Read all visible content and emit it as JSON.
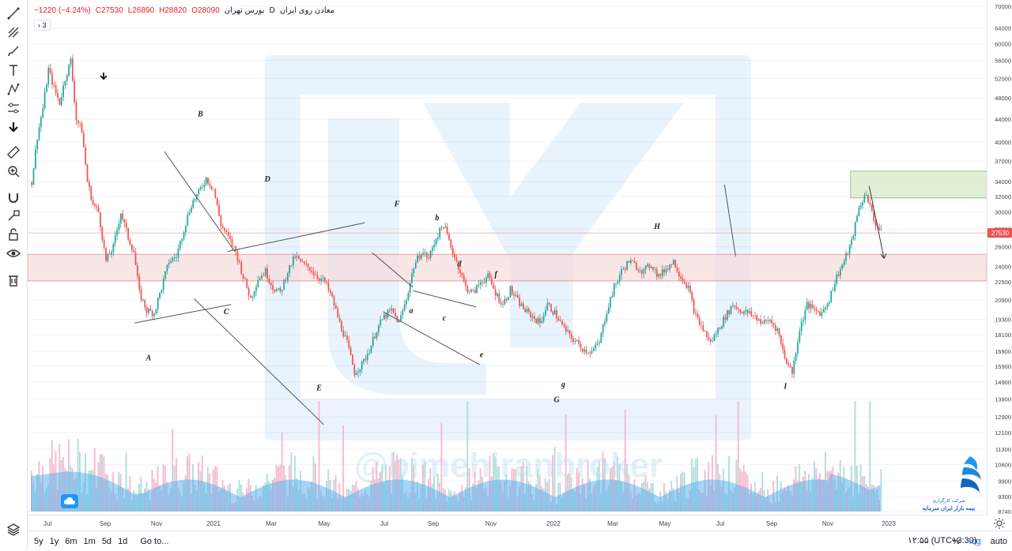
{
  "header": {
    "symbol": "معادن روی ایران",
    "interval": "D",
    "exchange": "بورس تهران",
    "open_label": "O",
    "open": "28090",
    "high_label": "H",
    "high": "28820",
    "low_label": "L",
    "low": "26890",
    "close_label": "C",
    "close": "27530",
    "change": "−1220 (−4.24%)",
    "collapse_count": "3"
  },
  "watermark": {
    "handle": "@bimehiranbroker"
  },
  "broker": {
    "line1": "شرکت کارگزاری",
    "line2": "بیمه بازار ایران سرمایه"
  },
  "toolbar": {
    "icons": [
      "trendline-icon",
      "pitchfork-icon",
      "brush-icon",
      "text-icon",
      "pattern-icon",
      "measure-settings-icon",
      "arrow-down-icon",
      "ruler-icon",
      "zoom-in-icon",
      "magnet-icon",
      "lock-drawing-icon",
      "unlock-icon",
      "eye-icon",
      "trash-icon"
    ],
    "bottom_icon": "layers-icon"
  },
  "bottom_bar": {
    "ranges": [
      "5y",
      "1y",
      "6m",
      "1m",
      "5d",
      "1d"
    ],
    "goto": "Go to...",
    "clock": "۱۲:۵۵ (UTC+3:30)",
    "percent": "%",
    "log": "log",
    "auto": "auto"
  },
  "colors": {
    "up": "#26a69a",
    "down": "#ef5350",
    "volume_area": "#5fb3ef",
    "zone": "#f8d7da",
    "box": "#d6e9c6",
    "price_tag": "#ef5350"
  },
  "chart_data": {
    "type": "candlestick",
    "title": "",
    "y_scale": "log",
    "ylim": [
      8740,
      70000
    ],
    "y_ticks": [
      70000,
      64000,
      60000,
      56000,
      52000,
      48000,
      44000,
      40000,
      37000,
      34000,
      32000,
      30000,
      28000,
      26000,
      24000,
      22500,
      20900,
      19300,
      18100,
      16900,
      15900,
      14900,
      13900,
      12900,
      12100,
      11300,
      10600,
      9900,
      9300,
      8740
    ],
    "x_ticks": [
      "Jul",
      "Sep",
      "Nov",
      "2021",
      "Mar",
      "May",
      "Jul",
      "Sep",
      "Nov",
      "2022",
      "Mar",
      "May",
      "Jul",
      "Sep",
      "Nov",
      "2023"
    ],
    "last_price": 27530,
    "price_path": [
      [
        0,
        34000
      ],
      [
        3,
        41000
      ],
      [
        6,
        46000
      ],
      [
        9,
        54000
      ],
      [
        12,
        50000
      ],
      [
        15,
        47000
      ],
      [
        18,
        52000
      ],
      [
        21,
        56000
      ],
      [
        24,
        44000
      ],
      [
        27,
        42000
      ],
      [
        30,
        34000
      ],
      [
        33,
        31000
      ],
      [
        36,
        30000
      ],
      [
        40,
        24500
      ],
      [
        44,
        26000
      ],
      [
        48,
        30000
      ],
      [
        52,
        27000
      ],
      [
        55,
        25500
      ],
      [
        58,
        21500
      ],
      [
        62,
        20000
      ],
      [
        66,
        19800
      ],
      [
        70,
        22000
      ],
      [
        74,
        24500
      ],
      [
        78,
        25000
      ],
      [
        82,
        28000
      ],
      [
        86,
        31000
      ],
      [
        90,
        32500
      ],
      [
        94,
        34500
      ],
      [
        98,
        33000
      ],
      [
        102,
        28500
      ],
      [
        106,
        27000
      ],
      [
        110,
        25500
      ],
      [
        114,
        23000
      ],
      [
        118,
        21000
      ],
      [
        122,
        22800
      ],
      [
        126,
        23500
      ],
      [
        130,
        22000
      ],
      [
        134,
        21500
      ],
      [
        138,
        23500
      ],
      [
        142,
        25000
      ],
      [
        146,
        24200
      ],
      [
        150,
        23800
      ],
      [
        154,
        23000
      ],
      [
        158,
        22500
      ],
      [
        162,
        21000
      ],
      [
        166,
        19000
      ],
      [
        170,
        17500
      ],
      [
        174,
        15500
      ],
      [
        178,
        16000
      ],
      [
        182,
        17000
      ],
      [
        186,
        18500
      ],
      [
        190,
        19500
      ],
      [
        194,
        20000
      ],
      [
        198,
        19000
      ],
      [
        202,
        21000
      ],
      [
        206,
        24000
      ],
      [
        210,
        25500
      ],
      [
        214,
        24800
      ],
      [
        218,
        27000
      ],
      [
        222,
        28500
      ],
      [
        226,
        26000
      ],
      [
        230,
        24000
      ],
      [
        234,
        22000
      ],
      [
        238,
        21500
      ],
      [
        242,
        22500
      ],
      [
        246,
        23000
      ],
      [
        250,
        21500
      ],
      [
        254,
        20500
      ],
      [
        258,
        21800
      ],
      [
        262,
        20800
      ],
      [
        266,
        20000
      ],
      [
        270,
        19500
      ],
      [
        274,
        19000
      ],
      [
        278,
        20500
      ],
      [
        282,
        19800
      ],
      [
        286,
        18800
      ],
      [
        290,
        18000
      ],
      [
        294,
        17500
      ],
      [
        298,
        17000
      ],
      [
        302,
        16900
      ],
      [
        306,
        17500
      ],
      [
        310,
        20000
      ],
      [
        314,
        22000
      ],
      [
        318,
        23500
      ],
      [
        322,
        24500
      ],
      [
        326,
        24000
      ],
      [
        330,
        23500
      ],
      [
        334,
        24200
      ],
      [
        338,
        23000
      ],
      [
        342,
        23800
      ],
      [
        346,
        24500
      ],
      [
        350,
        23000
      ],
      [
        354,
        22000
      ],
      [
        358,
        19500
      ],
      [
        362,
        18500
      ],
      [
        366,
        17500
      ],
      [
        370,
        18500
      ],
      [
        374,
        19500
      ],
      [
        378,
        20500
      ],
      [
        382,
        20000
      ],
      [
        386,
        19800
      ],
      [
        390,
        19500
      ],
      [
        394,
        19000
      ],
      [
        398,
        19200
      ],
      [
        402,
        18500
      ],
      [
        406,
        16500
      ],
      [
        410,
        15500
      ],
      [
        414,
        18500
      ],
      [
        418,
        20500
      ],
      [
        422,
        20000
      ],
      [
        426,
        19800
      ],
      [
        430,
        21000
      ],
      [
        434,
        23000
      ],
      [
        438,
        24500
      ],
      [
        442,
        26500
      ],
      [
        446,
        30500
      ],
      [
        450,
        32500
      ],
      [
        454,
        29000
      ],
      [
        458,
        27530
      ]
    ],
    "support_zone": [
      22600,
      25200
    ],
    "resistance_line": 27530,
    "target_box": [
      31800,
      35500
    ],
    "wave_labels": [
      {
        "text": "A",
        "bar": 62,
        "price": 16300
      },
      {
        "text": "B",
        "bar": 90,
        "price": 44500
      },
      {
        "text": "C",
        "bar": 104,
        "price": 19700
      },
      {
        "text": "D",
        "bar": 126,
        "price": 34000
      },
      {
        "text": "E",
        "bar": 154,
        "price": 14400
      },
      {
        "text": "F",
        "bar": 196,
        "price": 30700
      },
      {
        "text": "a",
        "bar": 204,
        "price": 19800
      },
      {
        "text": "b",
        "bar": 218,
        "price": 29000
      },
      {
        "text": "c",
        "bar": 222,
        "price": 19200
      },
      {
        "text": "d",
        "bar": 230,
        "price": 24000
      },
      {
        "text": "e",
        "bar": 242,
        "price": 16500
      },
      {
        "text": "f",
        "bar": 250,
        "price": 23000
      },
      {
        "text": "g",
        "bar": 286,
        "price": 14600
      },
      {
        "text": "G",
        "bar": 282,
        "price": 13700
      },
      {
        "text": "H",
        "bar": 336,
        "price": 28000
      },
      {
        "text": "I",
        "bar": 406,
        "price": 14500
      }
    ]
  }
}
